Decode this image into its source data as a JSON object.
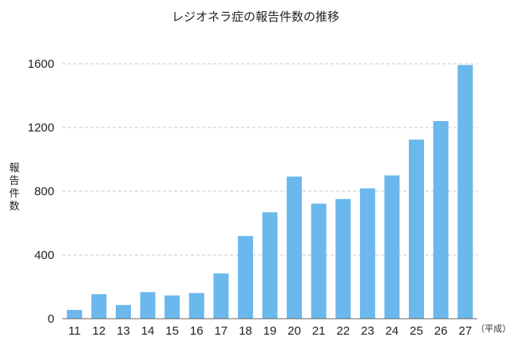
{
  "chart_data": {
    "type": "bar",
    "title": "レジオネラ症の報告件数の推移",
    "ylabel": "報告件数",
    "xunit": "（平成）",
    "categories": [
      "11",
      "12",
      "13",
      "14",
      "15",
      "16",
      "17",
      "18",
      "19",
      "20",
      "21",
      "22",
      "23",
      "24",
      "25",
      "26",
      "27"
    ],
    "values": [
      55,
      154,
      86,
      167,
      146,
      161,
      284,
      519,
      668,
      892,
      722,
      751,
      818,
      899,
      1124,
      1240,
      1592
    ],
    "ylim": [
      0,
      1600
    ],
    "yticks": [
      0,
      400,
      800,
      1200,
      1600
    ],
    "grid": true,
    "legend": "none",
    "bar_color": "#6ab8ec"
  }
}
